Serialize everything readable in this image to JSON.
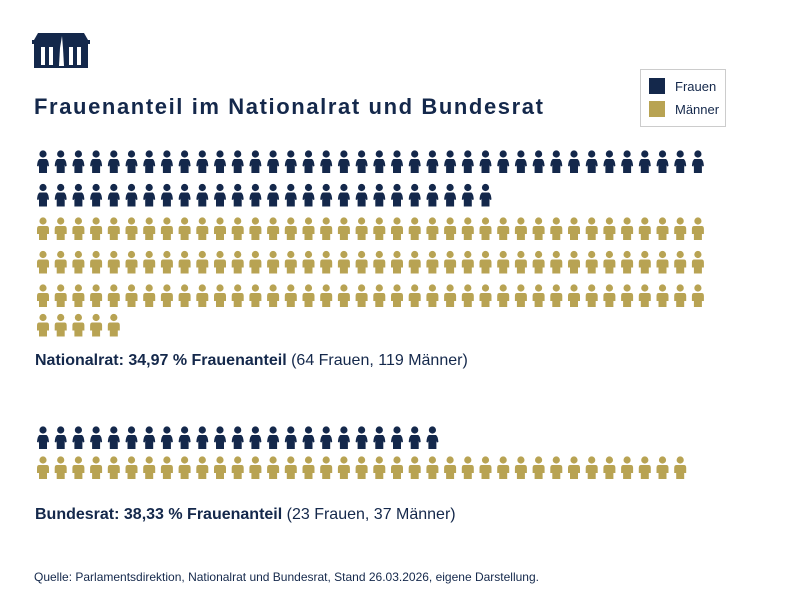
{
  "title": "Frauenanteil im Nationalrat und Bundesrat",
  "legend": {
    "women": "Frauen",
    "men": "Männer"
  },
  "colors": {
    "women": "#14284b",
    "men": "#b8a353"
  },
  "source": "Quelle: Parlamentsdirektion, Nationalrat und Bundesrat, Stand 26.03.2026, eigene Darstellung.",
  "chart_data": [
    {
      "type": "pictogram",
      "name": "Nationalrat",
      "women": 64,
      "men": 119,
      "per_row": 38,
      "caption_bold": "Nationalrat: 34,97 % Frauenanteil",
      "caption_rest": " (64 Frauen, 119 Männer)"
    },
    {
      "type": "pictogram",
      "name": "Bundesrat",
      "women": 23,
      "men": 37,
      "per_row": 38,
      "caption_bold": "Bundesrat: 38,33 % Frauenanteil",
      "caption_rest": " (23 Frauen, 37 Männer)"
    }
  ]
}
